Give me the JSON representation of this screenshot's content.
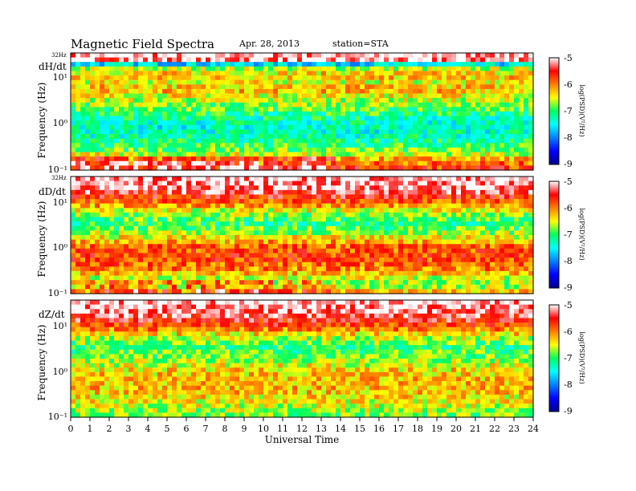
{
  "header": {
    "title": "Magnetic Field Spectra",
    "date": "Apr. 28, 2013",
    "station": "station=STA"
  },
  "chart_data": [
    {
      "type": "heatmap",
      "panel_label": "dH/dt",
      "ylabel": "Frequency (Hz)",
      "top_label": "32Hz",
      "yticks": [
        "10¹",
        "10⁰",
        "10⁻¹"
      ],
      "x_range": [
        0,
        24
      ],
      "colorbar": {
        "ticks": [
          "-5",
          "-6",
          "-7",
          "-8",
          "-9"
        ],
        "range": [
          -9,
          -5
        ],
        "label": "log(PSD)(V²/Hz)"
      },
      "profile": [
        [
          0.0,
          0.98
        ],
        [
          0.04,
          0.95
        ],
        [
          0.07,
          0.25
        ],
        [
          0.1,
          0.55
        ],
        [
          0.18,
          0.7
        ],
        [
          0.25,
          0.62
        ],
        [
          0.3,
          0.72
        ],
        [
          0.36,
          0.64
        ],
        [
          0.45,
          0.55
        ],
        [
          0.55,
          0.45
        ],
        [
          0.65,
          0.4
        ],
        [
          0.75,
          0.45
        ],
        [
          0.85,
          0.55
        ],
        [
          0.93,
          0.72
        ],
        [
          1.0,
          0.82
        ]
      ]
    },
    {
      "type": "heatmap",
      "panel_label": "dD/dt",
      "ylabel": "Frequency (Hz)",
      "top_label": "32Hz",
      "yticks": [
        "10¹",
        "10⁰",
        "10⁻¹"
      ],
      "x_range": [
        0,
        24
      ],
      "colorbar": {
        "ticks": [
          "-5",
          "-6",
          "-7",
          "-8",
          "-9"
        ],
        "range": [
          -9,
          -5
        ],
        "label": "log(PSD)(V²/Hz)"
      },
      "profile": [
        [
          0.0,
          0.98
        ],
        [
          0.1,
          0.94
        ],
        [
          0.2,
          0.8
        ],
        [
          0.3,
          0.58
        ],
        [
          0.4,
          0.48
        ],
        [
          0.5,
          0.6
        ],
        [
          0.6,
          0.78
        ],
        [
          0.7,
          0.82
        ],
        [
          0.8,
          0.75
        ],
        [
          0.88,
          0.62
        ],
        [
          0.95,
          0.55
        ],
        [
          1.0,
          0.68
        ]
      ]
    },
    {
      "type": "heatmap",
      "panel_label": "dZ/dt",
      "ylabel": "Frequency (Hz)",
      "top_label": "32Hz",
      "yticks": [
        "10¹",
        "10⁰",
        "10⁻¹"
      ],
      "x_range": [
        0,
        24
      ],
      "xlabel": "Universal Time",
      "xticks": [
        "0",
        "1",
        "2",
        "3",
        "4",
        "5",
        "6",
        "7",
        "8",
        "9",
        "10",
        "11",
        "12",
        "13",
        "14",
        "15",
        "16",
        "17",
        "18",
        "19",
        "20",
        "21",
        "22",
        "23",
        "24"
      ],
      "colorbar": {
        "ticks": [
          "-5",
          "-6",
          "-7",
          "-8",
          "-9"
        ],
        "range": [
          -9,
          -5
        ],
        "label": "log(PSD)(V²/Hz)"
      },
      "profile": [
        [
          0.0,
          0.98
        ],
        [
          0.1,
          0.94
        ],
        [
          0.2,
          0.82
        ],
        [
          0.3,
          0.62
        ],
        [
          0.4,
          0.5
        ],
        [
          0.5,
          0.56
        ],
        [
          0.6,
          0.66
        ],
        [
          0.7,
          0.7
        ],
        [
          0.8,
          0.68
        ],
        [
          0.9,
          0.62
        ],
        [
          1.0,
          0.55
        ]
      ]
    }
  ]
}
